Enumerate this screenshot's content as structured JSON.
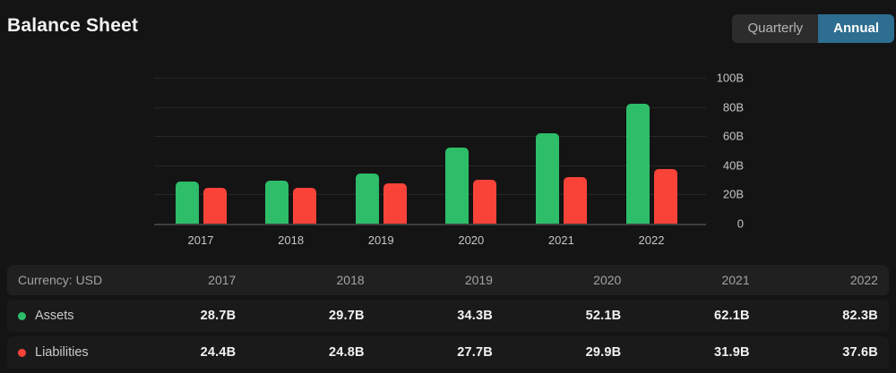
{
  "header": {
    "title": "Balance Sheet",
    "toggles": [
      {
        "label": "Quarterly",
        "active": false
      },
      {
        "label": "Annual",
        "active": true
      }
    ]
  },
  "colors": {
    "background": "#141414",
    "assets_green": "#2ebd69",
    "liabilities_red": "#f94339",
    "active_toggle_blue": "#2e6e90"
  },
  "chart_data": {
    "type": "bar",
    "categories": [
      "2017",
      "2018",
      "2019",
      "2020",
      "2021",
      "2022"
    ],
    "series": [
      {
        "name": "Assets",
        "color": "#2ebd69",
        "values": [
          28.7,
          29.7,
          34.3,
          52.1,
          62.1,
          82.3
        ]
      },
      {
        "name": "Liabilities",
        "color": "#f94339",
        "values": [
          24.4,
          24.8,
          27.7,
          29.9,
          31.9,
          37.6
        ]
      }
    ],
    "unit": "B",
    "ylim": [
      0,
      100
    ],
    "yticks": [
      {
        "value": 0,
        "label": "0"
      },
      {
        "value": 20,
        "label": "20B"
      },
      {
        "value": 40,
        "label": "40B"
      },
      {
        "value": 60,
        "label": "60B"
      },
      {
        "value": 80,
        "label": "80B"
      },
      {
        "value": 100,
        "label": "100B"
      }
    ],
    "grid": true,
    "y_axis_side": "right",
    "legend_position": "table-below"
  },
  "table": {
    "corner_label": "Currency: USD",
    "columns": [
      "2017",
      "2018",
      "2019",
      "2020",
      "2021",
      "2022"
    ],
    "rows": [
      {
        "label": "Assets",
        "dot_color": "#2ebd69",
        "values": [
          "28.7B",
          "29.7B",
          "34.3B",
          "52.1B",
          "62.1B",
          "82.3B"
        ]
      },
      {
        "label": "Liabilities",
        "dot_color": "#f94339",
        "values": [
          "24.4B",
          "24.8B",
          "27.7B",
          "29.9B",
          "31.9B",
          "37.6B"
        ]
      }
    ]
  }
}
